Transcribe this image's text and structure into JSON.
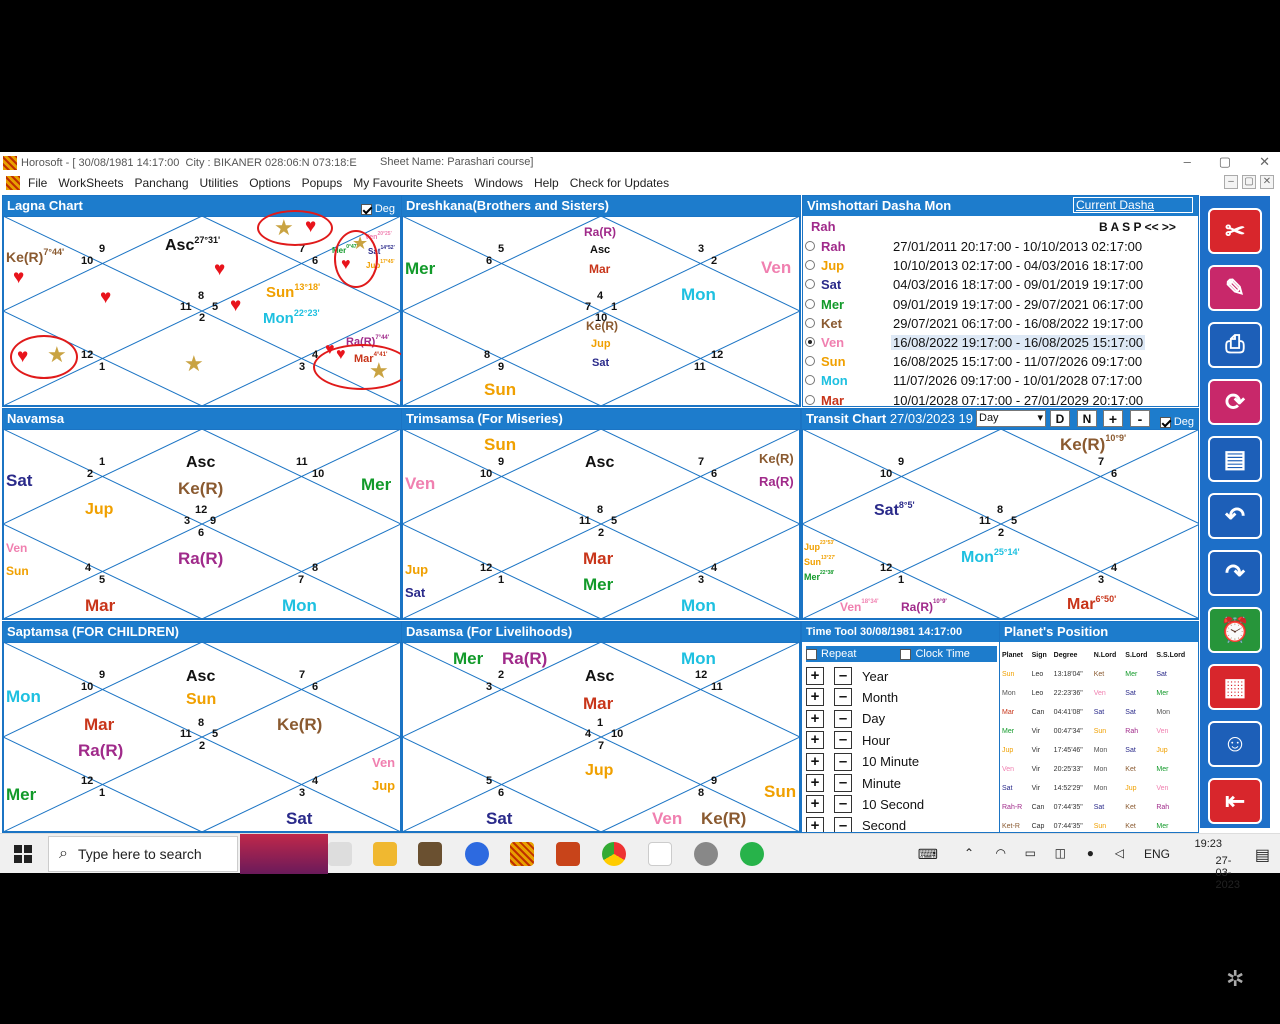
{
  "window": {
    "title": "Horosoft - [ 30/08/1981 14:17:00  City : BIKANER 028:06:N 073:18:E",
    "sheet_name": "Sheet Name: Parashari course]",
    "controls": [
      "–",
      "▢",
      "✕"
    ]
  },
  "menu": [
    "File",
    "WorkSheets",
    "Panchang",
    "Utilities",
    "Options",
    "Popups",
    "My Favourite Sheets",
    "Windows",
    "Help",
    "Check for Updates"
  ],
  "mdi_controls": [
    "–",
    "▢",
    "✕"
  ],
  "colors": {
    "header_blue": "#1d7ccc",
    "Sun": "#f0a000",
    "Mon": "#1ec0e0",
    "Mar": "#c8351a",
    "Mer": "#129a2a",
    "Jup": "#f0a000",
    "Ven": "#f080b0",
    "Sat": "#2a2a8a",
    "Rah": "#a02a8a",
    "Ket": "#8a5a30"
  },
  "panels": {
    "lagna": {
      "title": "Lagna Chart",
      "deg_label": "Deg",
      "houses": [
        "9",
        "10",
        "7",
        "6",
        "8",
        "11",
        "5",
        "2",
        "12",
        "1",
        "4",
        "3"
      ],
      "planets": {
        "asc": "Asc",
        "asc_deg": "27°31'",
        "ke": "Ke(R)",
        "ke_deg": "7°44'",
        "sun": "Sun",
        "sun_deg": "13°18'",
        "mon": "Mon",
        "mon_deg": "22°23'",
        "mer": "Mer",
        "mer_deg": "0°47'",
        "sat": "Sat",
        "sat_deg": "14°52'",
        "jup": "Jup",
        "jup_deg": "17°45'",
        "ven": "Ven",
        "ven_deg": "20°25'",
        "ra": "Ra(R)",
        "ra_deg": "7°44'",
        "mar": "Mar",
        "mar_deg": "4°41'"
      }
    },
    "dreshkana": {
      "title": "Dreshkana(Brothers and Sisters)",
      "houses": [
        "5",
        "6",
        "3",
        "2",
        "4",
        "7",
        "1",
        "10",
        "8",
        "9",
        "12",
        "11"
      ],
      "planets": {
        "ra": "Ra(R)",
        "asc": "Asc",
        "mar": "Mar",
        "mer": "Mer",
        "ven": "Ven",
        "mon": "Mon",
        "ke": "Ke(R)",
        "jup": "Jup",
        "sat": "Sat",
        "sun": "Sun"
      }
    },
    "dasha": {
      "title": "Vimshottari Dasha  Mon",
      "current_dasha": "Current Dasha",
      "sub_planet": "Rah",
      "nav": "B A S P << >>",
      "rows": [
        {
          "planet": "Rah",
          "period": "27/01/2011 20:17:00 - 10/10/2013 02:17:00",
          "selected": false
        },
        {
          "planet": "Jup",
          "period": "10/10/2013 02:17:00 - 04/03/2016 18:17:00",
          "selected": false
        },
        {
          "planet": "Sat",
          "period": "04/03/2016 18:17:00 - 09/01/2019 19:17:00",
          "selected": false
        },
        {
          "planet": "Mer",
          "period": "09/01/2019 19:17:00 - 29/07/2021 06:17:00",
          "selected": false
        },
        {
          "planet": "Ket",
          "period": "29/07/2021 06:17:00 - 16/08/2022 19:17:00",
          "selected": false
        },
        {
          "planet": "Ven",
          "period": "16/08/2022 19:17:00 - 16/08/2025 15:17:00",
          "selected": true
        },
        {
          "planet": "Sun",
          "period": "16/08/2025 15:17:00 - 11/07/2026 09:17:00",
          "selected": false
        },
        {
          "planet": "Mon",
          "period": "11/07/2026 09:17:00 - 10/01/2028 07:17:00",
          "selected": false
        },
        {
          "planet": "Mar",
          "period": "10/01/2028 07:17:00 - 27/01/2029 20:17:00",
          "selected": false
        }
      ]
    },
    "navamsa": {
      "title": "Navamsa",
      "houses": [
        "1",
        "2",
        "11",
        "10",
        "12",
        "3",
        "9",
        "6",
        "4",
        "5",
        "8",
        "7"
      ],
      "planets": {
        "sat": "Sat",
        "asc": "Asc",
        "ke": "Ke(R)",
        "mer": "Mer",
        "jup": "Jup",
        "ven": "Ven",
        "sun": "Sun",
        "ra": "Ra(R)",
        "mar": "Mar",
        "mon": "Mon"
      }
    },
    "trimsamsa": {
      "title": "Trimsamsa (For Miseries)",
      "houses": [
        "9",
        "10",
        "7",
        "6",
        "8",
        "11",
        "5",
        "2",
        "12",
        "1",
        "4",
        "3"
      ],
      "planets": {
        "sun": "Sun",
        "asc": "Asc",
        "ke": "Ke(R)",
        "ra": "Ra(R)",
        "ven": "Ven",
        "mar": "Mar",
        "mer": "Mer",
        "jup": "Jup",
        "sat": "Sat",
        "mon": "Mon"
      }
    },
    "transit": {
      "title": "Transit Chart",
      "date": "27/03/2023 19",
      "select": "Day",
      "buttons": [
        "D",
        "N",
        "+",
        "-"
      ],
      "deg_label": "Deg",
      "houses": [
        "9",
        "10",
        "7",
        "6",
        "8",
        "11",
        "5",
        "2",
        "12",
        "1",
        "4",
        "3"
      ],
      "planets": {
        "ke": "Ke(R)",
        "ke_deg": "10°9'",
        "sat": "Sat",
        "sat_deg": "8°5'",
        "mon": "Mon",
        "mon_deg": "25°14'",
        "jup": "Jup",
        "jup_deg": "23°53'",
        "sun": "Sun",
        "sun_deg": "13°27'",
        "mer": "Mer",
        "mer_deg": "22°38'",
        "ven": "Ven",
        "ven_deg": "18°34'",
        "ra": "Ra(R)",
        "ra_deg": "10°9'",
        "mar": "Mar",
        "mar_deg": "6°50'"
      }
    },
    "saptamsa": {
      "title": "Saptamsa (FOR CHILDREN)",
      "houses": [
        "9",
        "10",
        "7",
        "6",
        "8",
        "11",
        "5",
        "2",
        "12",
        "1",
        "4",
        "3"
      ],
      "planets": {
        "asc": "Asc",
        "sun": "Sun",
        "mon": "Mon",
        "mar": "Mar",
        "ra": "Ra(R)",
        "ke": "Ke(R)",
        "ven": "Ven",
        "jup": "Jup",
        "mer": "Mer",
        "sat": "Sat"
      }
    },
    "dasamsa": {
      "title": "Dasamsa (For Livelihoods)",
      "houses": [
        "2",
        "3",
        "12",
        "11",
        "1",
        "4",
        "10",
        "7",
        "5",
        "6",
        "9",
        "8"
      ],
      "planets": {
        "mer": "Mer",
        "ra": "Ra(R)",
        "mon": "Mon",
        "asc": "Asc",
        "mar": "Mar",
        "jup": "Jup",
        "sun": "Sun",
        "sat": "Sat",
        "ven": "Ven",
        "ke": "Ke(R)"
      }
    },
    "timetool": {
      "title": "Time Tool 30/08/1981 14:17:00",
      "repeat": "Repeat",
      "clock_time": "Clock Time",
      "rows": [
        "Year",
        "Month",
        "Day",
        "Hour",
        "10 Minute",
        "Minute",
        "10 Second",
        "Second"
      ]
    },
    "planets_position": {
      "title": "Planet's Position",
      "headers": [
        "Planet",
        "Sign",
        "Degree",
        "N.Lord",
        "S.Lord",
        "S.S.Lord"
      ],
      "rows": [
        [
          "Sun",
          "Leo",
          "13:18'04\"",
          "Ket",
          "Mer",
          "Sat"
        ],
        [
          "Mon",
          "Leo",
          "22:23'36\"",
          "Ven",
          "Sat",
          "Mer"
        ],
        [
          "Mar",
          "Can",
          "04:41'08\"",
          "Sat",
          "Sat",
          "Mon"
        ],
        [
          "Mer",
          "Vir",
          "00:47'34\"",
          "Sun",
          "Rah",
          "Ven"
        ],
        [
          "Jup",
          "Vir",
          "17:45'46\"",
          "Mon",
          "Sat",
          "Jup"
        ],
        [
          "Ven",
          "Vir",
          "20:25'33\"",
          "Mon",
          "Ket",
          "Mer"
        ],
        [
          "Sat",
          "Vir",
          "14:52'29\"",
          "Mon",
          "Jup",
          "Ven"
        ],
        [
          "Rah-R",
          "Can",
          "07:44'35\"",
          "Sat",
          "Ket",
          "Rah"
        ],
        [
          "Ket-R",
          "Cap",
          "07:44'35\"",
          "Sun",
          "Ket",
          "Mer"
        ]
      ]
    }
  },
  "toolbar_icons": [
    "tools-icon",
    "edit-icon",
    "print-icon",
    "sync-icon",
    "notes-icon",
    "undo-icon",
    "redo-icon",
    "clock-icon",
    "calendar-icon",
    "people-icon",
    "exit-icon"
  ],
  "taskbar": {
    "search_placeholder": "Type here to search",
    "tray_lang": "ENG",
    "time": "19:23",
    "date": "27-03-2023"
  }
}
